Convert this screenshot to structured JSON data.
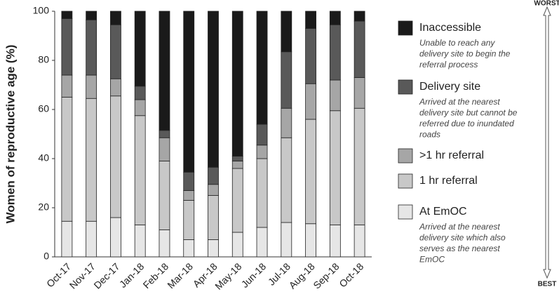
{
  "chart_data": {
    "type": "stacked_bar",
    "y_label": "Women of reproductive age (%)",
    "categories": [
      "Oct-17",
      "Nov-17",
      "Dec-17",
      "Jan-18",
      "Feb-18",
      "Mar-18",
      "Apr-18",
      "May-18",
      "Jun-18",
      "Jul-18",
      "Aug-18",
      "Sep-18",
      "Oct-18"
    ],
    "series": [
      {
        "name": "At EmOC",
        "color": "#e6e6e6",
        "description": [
          "Arrived at the nearest",
          "delivery site which also",
          "serves as the nearest",
          "EmOC"
        ],
        "values": [
          14.5,
          14.5,
          16,
          13,
          11,
          7,
          7,
          10,
          12,
          14,
          13.5,
          13,
          13
        ]
      },
      {
        "name": "1 hr referral",
        "color": "#c8c8c8",
        "values": [
          50.5,
          50,
          49.5,
          44.5,
          28,
          16,
          18,
          26,
          28,
          34.5,
          42.5,
          46.5,
          47.5
        ]
      },
      {
        "name": ">1 hr referral",
        "color": "#a6a6a6",
        "values": [
          9,
          9.5,
          7,
          6.5,
          9.5,
          4,
          4.5,
          3,
          5.5,
          12,
          14.5,
          12.5,
          12.5
        ]
      },
      {
        "name": "Delivery site",
        "color": "#595959",
        "description": [
          "Arrived at the nearest",
          "delivery site but cannot be",
          "referred due to inundated",
          "roads"
        ],
        "values": [
          23,
          22.5,
          22,
          5.5,
          3,
          7.5,
          7,
          2,
          8.5,
          23,
          22.5,
          22.5,
          23
        ]
      },
      {
        "name": "Inaccessible",
        "color": "#1a1a1a",
        "description": [
          "Unable to reach any",
          "delivery site to begin the",
          "referral process"
        ],
        "values": [
          3,
          3.5,
          5.5,
          30.5,
          48.5,
          65.5,
          63.5,
          59,
          46,
          16.5,
          7,
          5.5,
          4
        ]
      }
    ],
    "ylim": [
      0,
      100
    ],
    "yticks": [
      0,
      20,
      40,
      60,
      80,
      100
    ],
    "grid": false,
    "scale_top": "WORST",
    "scale_bottom": "BEST"
  }
}
